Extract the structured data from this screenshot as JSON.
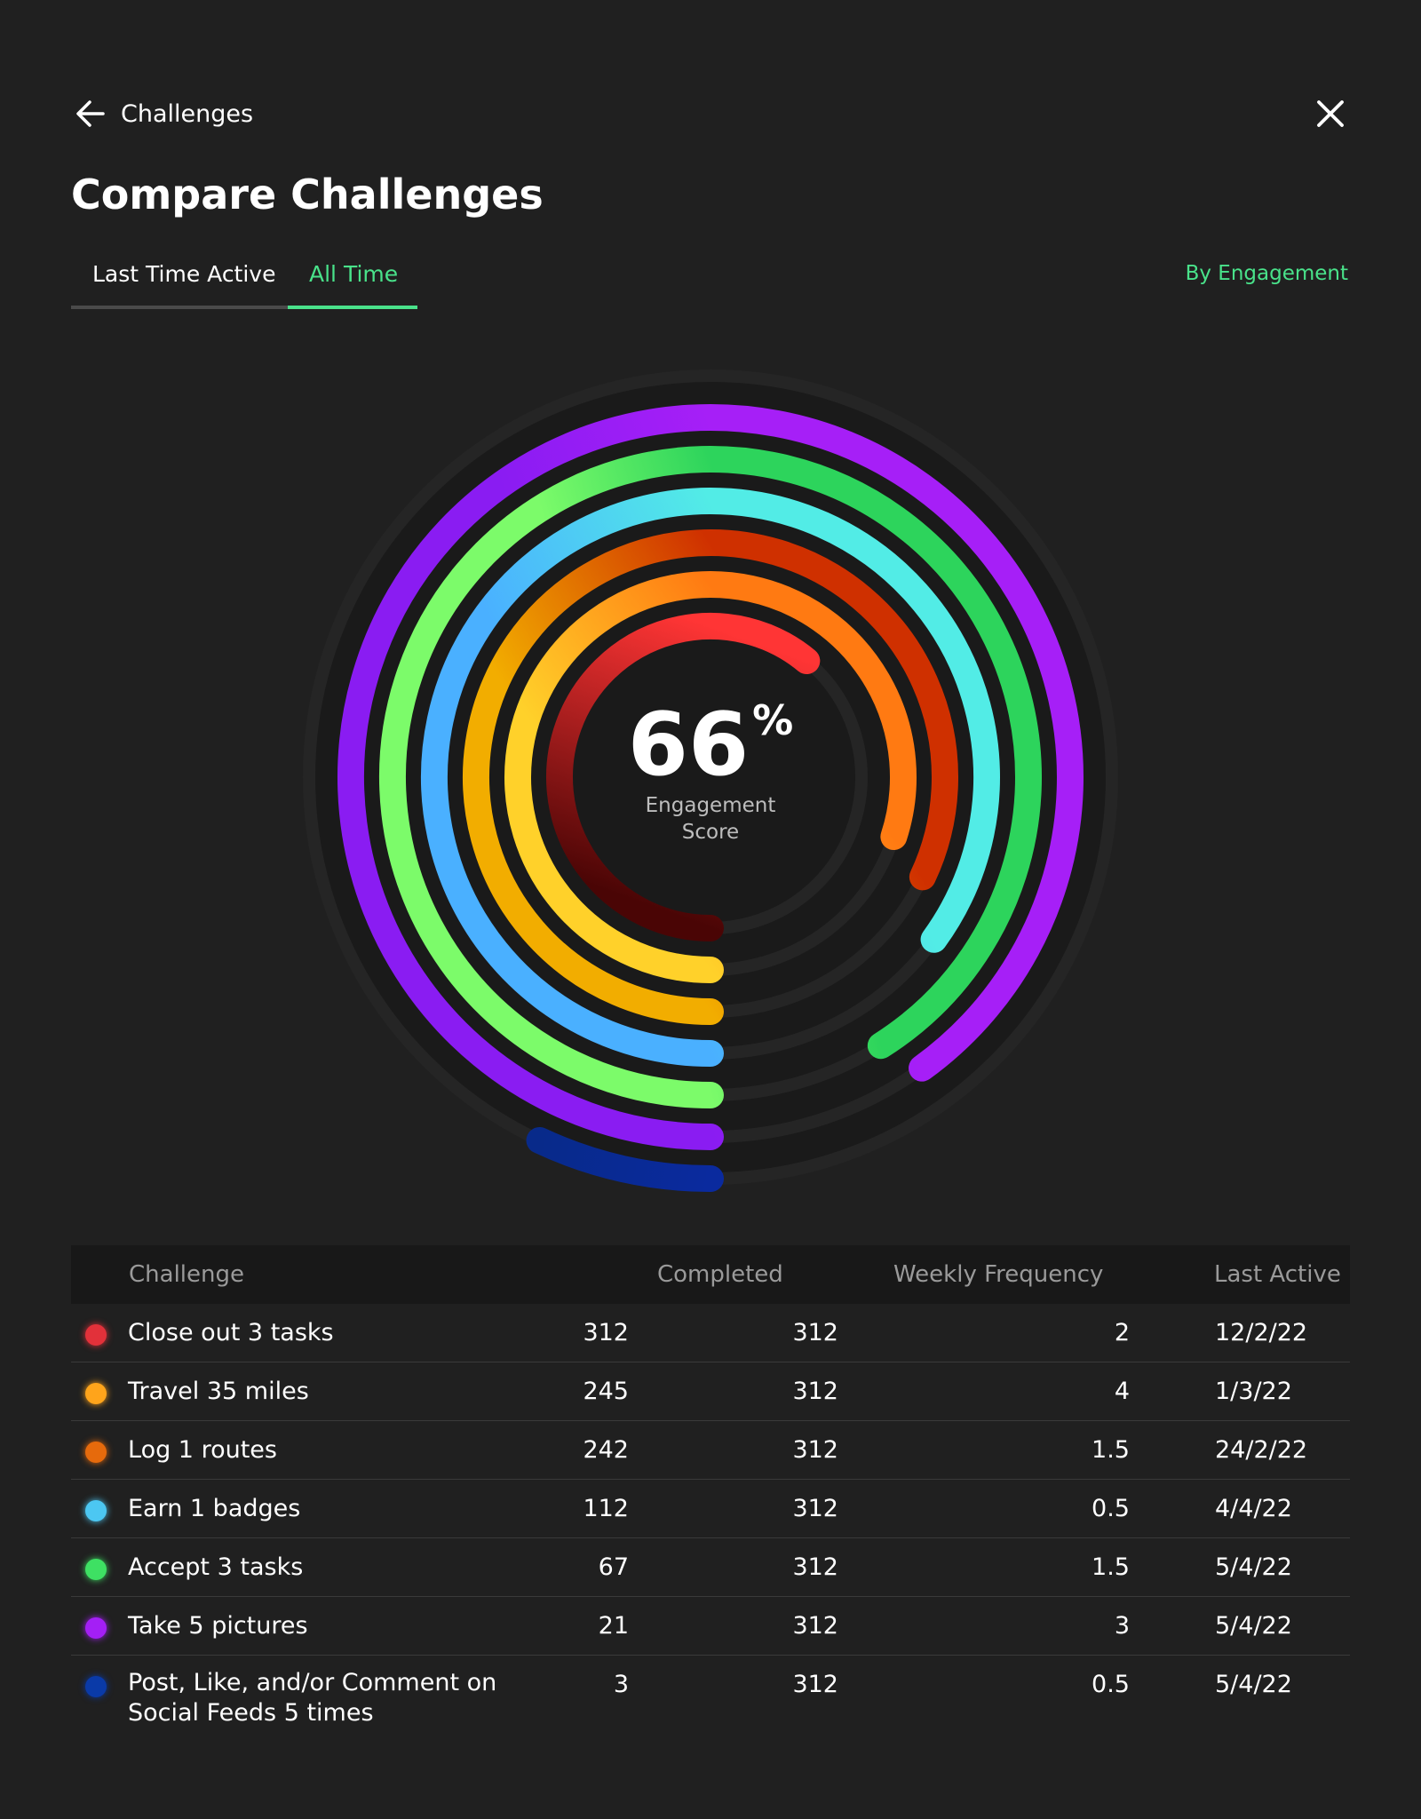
{
  "header": {
    "back_label": "Challenges",
    "title": "Compare Challenges",
    "back_icon": "arrow-left-icon",
    "close_icon": "close-icon"
  },
  "tabs": [
    {
      "label": "Last Time Active",
      "active": false
    },
    {
      "label": "All Time",
      "active": true
    }
  ],
  "sort_label": "By Engagement",
  "accent_color": "#49e28a",
  "score": {
    "value": "66",
    "unit": "%",
    "label": "Engagement Score"
  },
  "chart_data": {
    "type": "radial-bar",
    "center_value": 66,
    "series": [
      {
        "name": "Close out 3 tasks",
        "value": 0.61,
        "colors": [
          "#4a0505",
          "#ff3535"
        ]
      },
      {
        "name": "Travel 35 miles",
        "value": 0.8,
        "colors": [
          "#ffd12a",
          "#ff7a12"
        ]
      },
      {
        "name": "Log 1 routes",
        "value": 0.82,
        "colors": [
          "#f2ad00",
          "#cf3000"
        ]
      },
      {
        "name": "Earn 1 badges",
        "value": 0.85,
        "colors": [
          "#4ab0ff",
          "#52ece6"
        ]
      },
      {
        "name": "Accept 3 tasks",
        "value": 0.91,
        "colors": [
          "#7cfb6a",
          "#2dd45c"
        ]
      },
      {
        "name": "Take 5 pictures",
        "value": 0.9,
        "colors": [
          "#8a1cf2",
          "#a61ff7"
        ]
      },
      {
        "name": "Post, Like, and/or Comment on Social Feeds 5 times",
        "value": 0.07,
        "colors": [
          "#0a2a9e",
          "#082a8a"
        ]
      }
    ]
  },
  "table": {
    "headers": [
      "Challenge",
      "Completed",
      "Weekly Frequency",
      "Last Active"
    ],
    "rows": [
      {
        "name": "Close out 3 tasks",
        "c1": "312",
        "c2": "312",
        "c3": "2",
        "c4": "12/2/22",
        "color": "#e2313a"
      },
      {
        "name": "Travel 35 miles",
        "c1": "245",
        "c2": "312",
        "c3": "4",
        "c4": "1/3/22",
        "color": "#ffa41b"
      },
      {
        "name": "Log 1 routes",
        "c1": "242",
        "c2": "312",
        "c3": "1.5",
        "c4": "24/2/22",
        "color": "#e66a0c"
      },
      {
        "name": "Earn 1 badges",
        "c1": "112",
        "c2": "312",
        "c3": "0.5",
        "c4": "4/4/22",
        "color": "#4cc7f2"
      },
      {
        "name": "Accept 3 tasks",
        "c1": "67",
        "c2": "312",
        "c3": "1.5",
        "c4": "5/4/22",
        "color": "#3ee063"
      },
      {
        "name": "Take 5 pictures",
        "c1": "21",
        "c2": "312",
        "c3": "3",
        "c4": "5/4/22",
        "color": "#a41ff5"
      },
      {
        "name": "Post, Like, and/or Comment on Social Feeds 5 times",
        "c1": "3",
        "c2": "312",
        "c3": "0.5",
        "c4": "5/4/22",
        "color": "#0a3aa8"
      }
    ]
  }
}
